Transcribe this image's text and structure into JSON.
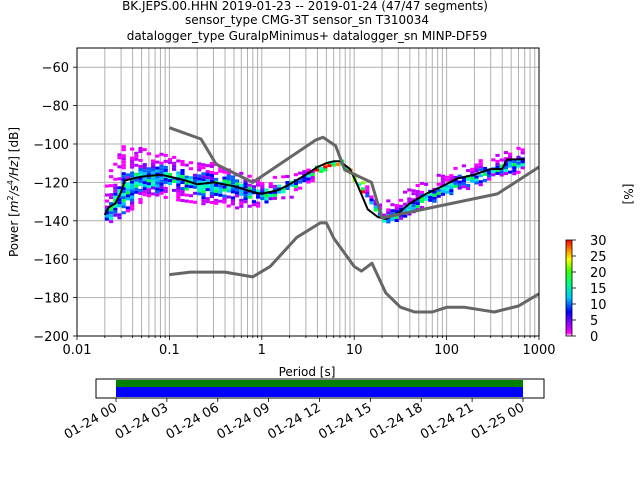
{
  "chart_data": {
    "type": "heatmap",
    "title_lines": [
      "BK.JEPS.00.HHN   2019-01-23 -- 2019-01-24  (47/47 segments)",
      "sensor_type CMG-3T sensor_sn T310034",
      "datalogger_type GuralpMinimus+ datalogger_sn MINP-DF59"
    ],
    "xlabel": "Period [s]",
    "ylabel": "Power [m²/s⁴/Hz] [dB]",
    "ylabel_parts": {
      "prefix": "Power [",
      "m": "m",
      "m_exp": "2",
      "s": "/s",
      "s_exp": "4",
      "hz": "/Hz",
      "suffix": "] [dB]"
    },
    "xscale": "log",
    "xlim": [
      0.01,
      1000
    ],
    "ylim": [
      -200,
      -50
    ],
    "xticks": [
      0.01,
      0.1,
      1,
      10,
      100,
      1000
    ],
    "xtick_labels": [
      "0.01",
      "0.1",
      "1",
      "10",
      "100",
      "1000"
    ],
    "yticks": [
      -60,
      -80,
      -100,
      -120,
      -140,
      -160,
      -180,
      -200
    ],
    "ytick_labels": [
      "−60",
      "−80",
      "−100",
      "−120",
      "−140",
      "−160",
      "−180",
      "−200"
    ],
    "grid": true,
    "colorbar": {
      "label": "[%]",
      "range": [
        0,
        30
      ],
      "ticks": [
        0,
        5,
        10,
        15,
        20,
        25,
        30
      ],
      "tick_labels": [
        "0",
        "5",
        "10",
        "15",
        "20",
        "25",
        "30"
      ]
    },
    "series": [
      {
        "name": "mode",
        "color": "#000000",
        "x": [
          0.02,
          0.022,
          0.026,
          0.03,
          0.033,
          0.05,
          0.08,
          0.1,
          0.15,
          0.2,
          0.3,
          0.5,
          0.8,
          1.0,
          1.5,
          2.0,
          3.0,
          4.0,
          5.0,
          6.0,
          7.0,
          9.0,
          11.0,
          14.0,
          18.0,
          22.0,
          30.0,
          40.0,
          60.0,
          90.0,
          130.0,
          200.0,
          300.0,
          400.0,
          450.0,
          700.0
        ],
        "y": [
          -137,
          -133,
          -131,
          -125,
          -119,
          -117,
          -116,
          -117,
          -119,
          -121,
          -120,
          -122,
          -125,
          -126,
          -124,
          -121,
          -116,
          -112,
          -110,
          -109,
          -109,
          -113,
          -122,
          -134,
          -138,
          -139,
          -136,
          -131,
          -126,
          -122,
          -118,
          -116,
          -113,
          -113,
          -108,
          -108
        ]
      },
      {
        "name": "NHNM",
        "color": "#666666",
        "x": [
          0.1,
          0.22,
          0.32,
          0.8,
          3.8,
          4.6,
          6.3,
          7.9,
          15.4,
          20.0,
          354.8,
          1000
        ],
        "y": [
          -91.5,
          -97.4,
          -110.5,
          -120,
          -98,
          -96.5,
          -101,
          -113.5,
          -120,
          -138.5,
          -126,
          -112
        ]
      },
      {
        "name": "NLNM",
        "color": "#666666",
        "x": [
          0.1,
          0.17,
          0.4,
          0.8,
          1.24,
          2.4,
          4.3,
          5.0,
          6.0,
          10.0,
          12.0,
          15.6,
          21.9,
          31.6,
          45.0,
          70.0,
          101.0,
          154.0,
          328.0,
          600.0,
          1000
        ],
        "y": [
          -168,
          -166.7,
          -166.7,
          -169.2,
          -163.7,
          -148.6,
          -141.1,
          -141.1,
          -149,
          -163.8,
          -166.2,
          -162.1,
          -177.5,
          -185,
          -187.5,
          -187.5,
          -185,
          -185,
          -187.5,
          -184.4,
          -178
        ]
      }
    ],
    "density_band": {
      "description_values": "probability density (%) of PSD values",
      "x": [
        0.02,
        0.03,
        0.05,
        0.1,
        0.2,
        0.5,
        1.0,
        2.0,
        5.0,
        7.0,
        10.0,
        20.0,
        50.0,
        100.0,
        300.0,
        700.0
      ],
      "mode_y": [
        -137,
        -125,
        -117,
        -117,
        -121,
        -122,
        -126,
        -121,
        -110,
        -109,
        -118,
        -139,
        -129,
        -122,
        -113,
        -108
      ],
      "upper_y": [
        -118,
        -99,
        -102,
        -106,
        -108,
        -112,
        -117,
        -116,
        -109,
        -108,
        -116,
        -130,
        -120,
        -113,
        -106,
        -100
      ],
      "lower_y": [
        -142,
        -137,
        -129,
        -128,
        -130,
        -133,
        -132,
        -127,
        -112,
        -110,
        -120,
        -142,
        -134,
        -127,
        -118,
        -114
      ]
    },
    "timeline": {
      "tick_labels": [
        "01-24 00",
        "01-24 03",
        "01-24 06",
        "01-24 09",
        "01-24 12",
        "01-24 15",
        "01-24 18",
        "01-24 21",
        "01-25 00"
      ],
      "coverage_start_fraction": 0.0,
      "coverage_end_fraction": 1.0,
      "colors": {
        "data": "#0000ff",
        "gaps_ok": "#008000"
      }
    }
  },
  "colors": {
    "grid": "#b0b0b0",
    "axis": "#000000",
    "model_curve": "#666666",
    "mode_curve": "#000000",
    "cbar_stops": [
      "#ffffff",
      "#ff00ff",
      "#8800ff",
      "#0000ff",
      "#00ffff",
      "#00ff00",
      "#ffff00",
      "#ff8800",
      "#ff0000"
    ]
  }
}
